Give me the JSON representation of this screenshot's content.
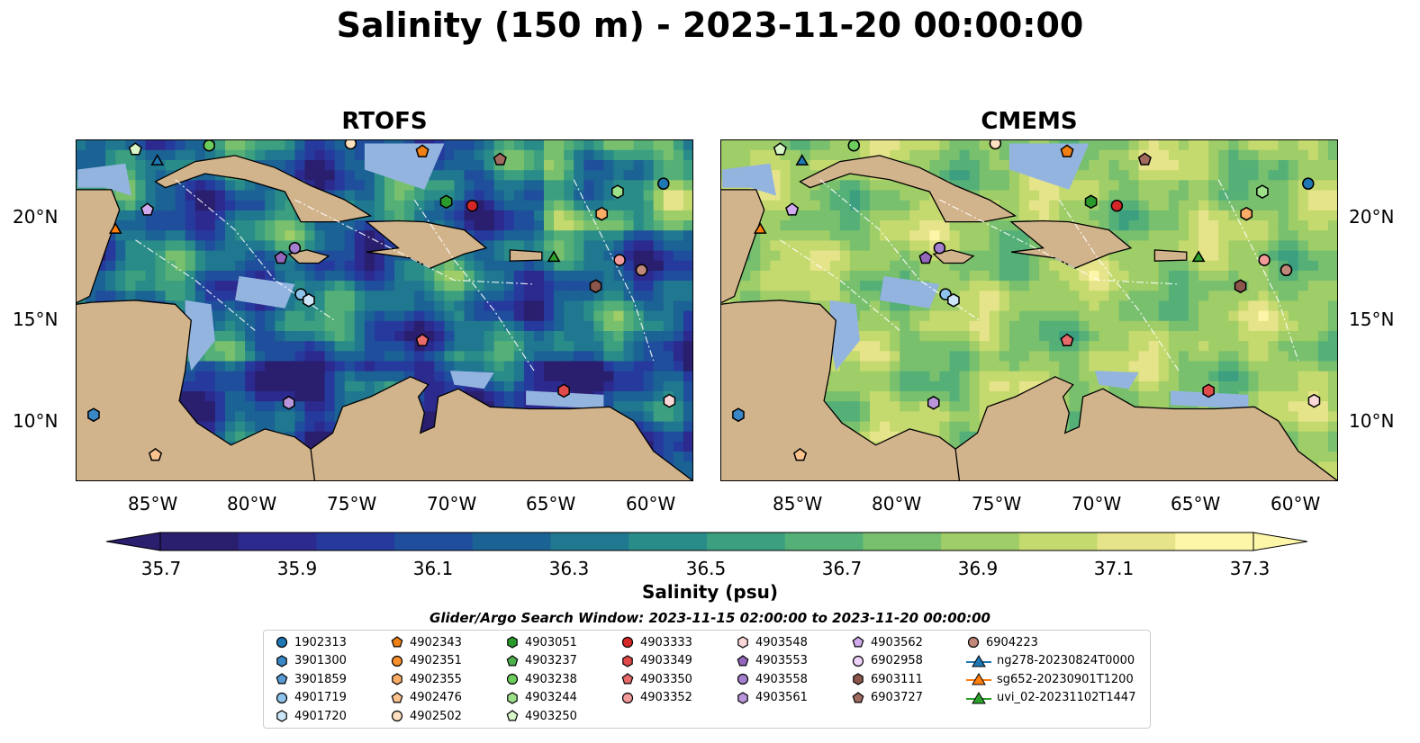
{
  "title": "Salinity (150 m) - 2023-11-20 00:00:00",
  "panels": [
    {
      "title": "RTOFS",
      "palette": "rtofs"
    },
    {
      "title": "CMEMS",
      "palette": "cmems"
    }
  ],
  "lat_labels": [
    "20°N",
    "15°N",
    "10°N"
  ],
  "lon_labels": [
    "85°W",
    "80°W",
    "75°W",
    "70°W",
    "65°W",
    "60°W"
  ],
  "colorbar": {
    "label": "Salinity (psu)",
    "ticks": [
      "35.7",
      "35.9",
      "36.1",
      "36.3",
      "36.5",
      "36.7",
      "36.9",
      "37.1",
      "37.3"
    ],
    "range": [
      35.7,
      37.3
    ],
    "colors": [
      "#2a1e6e",
      "#2c2a8e",
      "#263a9e",
      "#1f4f9c",
      "#1b6394",
      "#1f7890",
      "#2a8c88",
      "#3b9f80",
      "#55b078",
      "#78c06e",
      "#9fcd68",
      "#c4da6e",
      "#e6e48a",
      "#fdf6a8"
    ]
  },
  "colors": {
    "land": "#d2b48c",
    "shallow": "#94b4e0",
    "deep_low_salinity": "#2a1e6e"
  },
  "search_window": "Glider/Argo Search Window: 2023-11-15 02:00:00 to 2023-11-20 00:00:00",
  "legend": {
    "columns": [
      [
        {
          "label": "1902313",
          "marker": "circle",
          "color": "#1f77b4"
        },
        {
          "label": "3901300",
          "marker": "hexagon",
          "color": "#3a87c5"
        },
        {
          "label": "3901859",
          "marker": "pentagon",
          "color": "#5a9ad5"
        },
        {
          "label": "4901719",
          "marker": "circle",
          "color": "#8ec4eb"
        },
        {
          "label": "4901720",
          "marker": "hexagon",
          "color": "#cde6f7"
        }
      ],
      [
        {
          "label": "4902343",
          "marker": "pentagon",
          "color": "#f07f14"
        },
        {
          "label": "4902351",
          "marker": "circle",
          "color": "#f9902e"
        },
        {
          "label": "4902355",
          "marker": "hexagon",
          "color": "#fbac66"
        },
        {
          "label": "4902476",
          "marker": "pentagon",
          "color": "#fcc38f"
        },
        {
          "label": "4902502",
          "marker": "circle",
          "color": "#fde0bf"
        }
      ],
      [
        {
          "label": "4903051",
          "marker": "hexagon",
          "color": "#2a9a2a"
        },
        {
          "label": "4903237",
          "marker": "pentagon",
          "color": "#4cb04c"
        },
        {
          "label": "4903238",
          "marker": "circle",
          "color": "#6ccc5c"
        },
        {
          "label": "4903244",
          "marker": "hexagon",
          "color": "#9de08a"
        },
        {
          "label": "4903250",
          "marker": "pentagon",
          "color": "#d8f6c8"
        }
      ],
      [
        {
          "label": "4903333",
          "marker": "circle",
          "color": "#d62728"
        },
        {
          "label": "4903349",
          "marker": "hexagon",
          "color": "#e04a4a"
        },
        {
          "label": "4903350",
          "marker": "pentagon",
          "color": "#e86a6a"
        },
        {
          "label": "4903352",
          "marker": "circle",
          "color": "#f29a9a"
        }
      ],
      [
        {
          "label": "4903548",
          "marker": "hexagon",
          "color": "#fbd8d8"
        },
        {
          "label": "4903553",
          "marker": "pentagon",
          "color": "#9467bd"
        },
        {
          "label": "4903558",
          "marker": "circle",
          "color": "#a57fcf"
        },
        {
          "label": "4903561",
          "marker": "hexagon",
          "color": "#b996db"
        }
      ],
      [
        {
          "label": "4903562",
          "marker": "pentagon",
          "color": "#cfaaee"
        },
        {
          "label": "6902958",
          "marker": "circle",
          "color": "#eed2f9"
        },
        {
          "label": "6903111",
          "marker": "hexagon",
          "color": "#8c564b"
        },
        {
          "label": "6903727",
          "marker": "pentagon",
          "color": "#a06a5e"
        }
      ],
      [
        {
          "label": "6904223",
          "marker": "circle",
          "color": "#c08878"
        },
        {
          "label": "ng278-20230824T0000",
          "marker": "triangle-line",
          "color": "#1f77b4"
        },
        {
          "label": "sg652-20230901T1200",
          "marker": "triangle-line",
          "color": "#ff7f0e"
        },
        {
          "label": "uvi_02-20231102T1447",
          "marker": "triangle-line",
          "color": "#2ca02c"
        }
      ]
    ]
  },
  "observations": [
    {
      "label": "1902313",
      "marker": "circle",
      "color": "#1f77b4",
      "lon": -59.5,
      "lat": 21.8
    },
    {
      "label": "3901300",
      "marker": "hexagon",
      "color": "#3a87c5",
      "lon": -88.1,
      "lat": 10.3
    },
    {
      "label": "4901719",
      "marker": "circle",
      "color": "#8ec4eb",
      "lon": -77.7,
      "lat": 16.3
    },
    {
      "label": "4901720",
      "marker": "hexagon",
      "color": "#cde6f7",
      "lon": -77.3,
      "lat": 16.0
    },
    {
      "label": "4902343",
      "marker": "pentagon",
      "color": "#f07f14",
      "lon": -71.6,
      "lat": 23.4
    },
    {
      "label": "4902355",
      "marker": "hexagon",
      "color": "#fbac66",
      "lon": -62.6,
      "lat": 20.3
    },
    {
      "label": "4902476",
      "marker": "pentagon",
      "color": "#fcc38f",
      "lon": -85.0,
      "lat": 8.3
    },
    {
      "label": "4902502",
      "marker": "circle",
      "color": "#fde0bf",
      "lon": -75.2,
      "lat": 23.8
    },
    {
      "label": "4903051",
      "marker": "hexagon",
      "color": "#2a9a2a",
      "lon": -70.4,
      "lat": 20.9
    },
    {
      "label": "4903238",
      "marker": "circle",
      "color": "#6ccc5c",
      "lon": -82.3,
      "lat": 23.7
    },
    {
      "label": "4903244",
      "marker": "hexagon",
      "color": "#9de08a",
      "lon": -61.8,
      "lat": 21.4
    },
    {
      "label": "4903250",
      "marker": "pentagon",
      "color": "#d8f6c8",
      "lon": -86.0,
      "lat": 23.5
    },
    {
      "label": "4903333",
      "marker": "circle",
      "color": "#d62728",
      "lon": -69.1,
      "lat": 20.7
    },
    {
      "label": "4903349",
      "marker": "hexagon",
      "color": "#e04a4a",
      "lon": -64.5,
      "lat": 11.5
    },
    {
      "label": "4903350",
      "marker": "pentagon",
      "color": "#e86a6a",
      "lon": -71.6,
      "lat": 14.0
    },
    {
      "label": "4903352",
      "marker": "circle",
      "color": "#f29a9a",
      "lon": -61.7,
      "lat": 18.0
    },
    {
      "label": "4903548",
      "marker": "hexagon",
      "color": "#fbd8d8",
      "lon": -59.2,
      "lat": 11.0
    },
    {
      "label": "4903553",
      "marker": "pentagon",
      "color": "#9467bd",
      "lon": -78.7,
      "lat": 18.1
    },
    {
      "label": "4903558",
      "marker": "circle",
      "color": "#a57fcf",
      "lon": -78.0,
      "lat": 18.6
    },
    {
      "label": "4903561",
      "marker": "hexagon",
      "color": "#b996db",
      "lon": -78.3,
      "lat": 10.9
    },
    {
      "label": "4903562",
      "marker": "pentagon",
      "color": "#cfaaee",
      "lon": -85.4,
      "lat": 20.5
    },
    {
      "label": "6902958",
      "marker": "circle",
      "color": "#eed2f9",
      "lon": -60.6,
      "lat": 17.5
    },
    {
      "label": "6903111",
      "marker": "hexagon",
      "color": "#8c564b",
      "lon": -62.9,
      "lat": 16.7
    },
    {
      "label": "6903727",
      "marker": "pentagon",
      "color": "#a06a5e",
      "lon": -67.7,
      "lat": 23.0
    },
    {
      "label": "6904223",
      "marker": "circle",
      "color": "#c08878",
      "lon": -60.6,
      "lat": 17.5
    },
    {
      "label": "ng278-20230824T0000",
      "marker": "triangle",
      "color": "#1f77b4",
      "lon": -84.9,
      "lat": 22.9
    },
    {
      "label": "sg652-20230901T1200",
      "marker": "triangle",
      "color": "#ff7f0e",
      "lon": -87.0,
      "lat": 19.5
    },
    {
      "label": "uvi_02-20231102T1447",
      "marker": "triangle",
      "color": "#2ca02c",
      "lon": -65.0,
      "lat": 18.1
    }
  ],
  "map_extent": {
    "lon": [
      -89,
      -58
    ],
    "lat": [
      7,
      24
    ]
  }
}
